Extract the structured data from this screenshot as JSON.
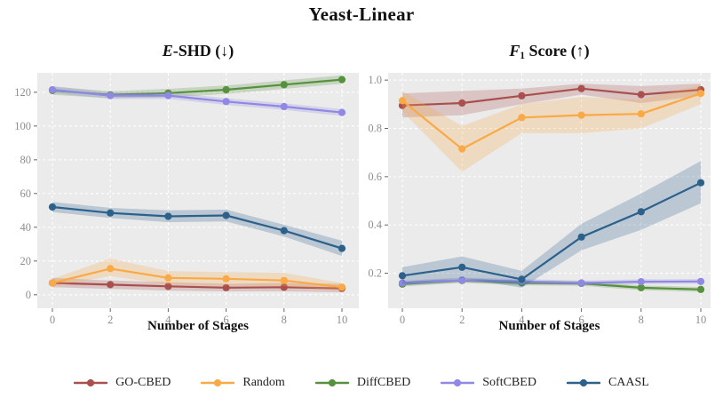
{
  "figure": {
    "title": "Yeast-Linear"
  },
  "panels": [
    {
      "title_italic": "E",
      "title_sub": "",
      "title_rest": "-SHD (↓)",
      "xlabel": "Number of Stages"
    },
    {
      "title_italic": "F",
      "title_sub": "1",
      "title_rest": " Score (↑)",
      "xlabel": "Number of Stages"
    }
  ],
  "legend": {
    "position": "bottom",
    "items": [
      {
        "label": "GO-CBED",
        "color": "#a9504e"
      },
      {
        "label": "Random",
        "color": "#f9a945"
      },
      {
        "label": "DiffCBED",
        "color": "#56913e"
      },
      {
        "label": "SoftCBED",
        "color": "#8f88e4"
      },
      {
        "label": "CAASL",
        "color": "#2c618c"
      }
    ]
  },
  "style": {
    "panel_bg": "#ebebeb",
    "gridline_color": "#ffffff",
    "tick_label_color": "#8e8e8e",
    "tick_mark_color": "#666666",
    "band_opacity": 0.25
  },
  "chart_data": [
    {
      "type": "line",
      "title": "E-SHD (↓)",
      "xlabel": "Number of Stages",
      "ylabel": "",
      "grid": true,
      "x": [
        0,
        2,
        4,
        6,
        8,
        10
      ],
      "xtick_labels": [
        "0",
        "2",
        "4",
        "6",
        "8",
        "10"
      ],
      "xlim": [
        -0.55,
        10.6
      ],
      "ylim": [
        -8,
        131.5
      ],
      "yticks": [
        0,
        20,
        40,
        60,
        80,
        100,
        120
      ],
      "ytick_labels": [
        "0",
        "20",
        "40",
        "60",
        "80",
        "100",
        "120"
      ],
      "series": [
        {
          "name": "GO-CBED",
          "color": "#a9504e",
          "values": [
            7,
            6,
            5,
            4.2,
            4.5,
            3.8
          ],
          "band_low": [
            4.5,
            3.5,
            2.5,
            2,
            2,
            1.5
          ],
          "band_high": [
            10,
            8.5,
            7.5,
            6.5,
            7,
            6.5
          ]
        },
        {
          "name": "Random",
          "color": "#f9a945",
          "values": [
            7,
            15.5,
            10,
            9.5,
            8.5,
            4.5
          ],
          "band_low": [
            5,
            11,
            6,
            5.5,
            5,
            2.5
          ],
          "band_high": [
            9.5,
            21.5,
            14,
            13.5,
            13,
            7
          ]
        },
        {
          "name": "DiffCBED",
          "color": "#56913e",
          "values": [
            121,
            118.5,
            119.5,
            121.5,
            124.5,
            127.5
          ],
          "band_low": [
            118.5,
            116.5,
            117,
            119,
            122,
            125
          ],
          "band_high": [
            123.5,
            120.5,
            122,
            124,
            127,
            130
          ]
        },
        {
          "name": "SoftCBED",
          "color": "#8f88e4",
          "values": [
            121.5,
            118,
            118,
            114.5,
            111.5,
            108
          ],
          "band_low": [
            119.5,
            116,
            116,
            112.5,
            109.5,
            106
          ],
          "band_high": [
            123.5,
            120,
            120,
            116.5,
            113.5,
            110
          ]
        },
        {
          "name": "CAASL",
          "color": "#2c618c",
          "values": [
            52,
            48.5,
            46.5,
            47,
            38,
            27.5
          ],
          "band_low": [
            49,
            45.5,
            43,
            43.5,
            34.5,
            23
          ],
          "band_high": [
            55,
            51.5,
            50,
            50.5,
            41.5,
            32
          ]
        }
      ]
    },
    {
      "type": "line",
      "title": "F1 Score (↑)",
      "xlabel": "Number of Stages",
      "ylabel": "",
      "grid": true,
      "x": [
        0,
        2,
        4,
        6,
        8,
        10
      ],
      "xtick_labels": [
        "0",
        "2",
        "4",
        "6",
        "8",
        "10"
      ],
      "xlim": [
        -0.5,
        10.35
      ],
      "ylim": [
        0.055,
        1.03
      ],
      "yticks": [
        0.2,
        0.4,
        0.6,
        0.8,
        1.0
      ],
      "ytick_labels": [
        "0.2",
        "0.4",
        "0.6",
        "0.8",
        "1.0"
      ],
      "series": [
        {
          "name": "GO-CBED",
          "color": "#a9504e",
          "values": [
            0.895,
            0.905,
            0.935,
            0.965,
            0.94,
            0.96
          ],
          "band_low": [
            0.845,
            0.855,
            0.9,
            0.94,
            0.905,
            0.935
          ],
          "band_high": [
            0.945,
            0.955,
            0.965,
            0.985,
            0.975,
            0.985
          ]
        },
        {
          "name": "Random",
          "color": "#f9a945",
          "values": [
            0.915,
            0.715,
            0.845,
            0.855,
            0.86,
            0.945
          ],
          "band_low": [
            0.87,
            0.62,
            0.78,
            0.78,
            0.8,
            0.9
          ],
          "band_high": [
            0.955,
            0.81,
            0.9,
            0.93,
            0.92,
            0.98
          ]
        },
        {
          "name": "DiffCBED",
          "color": "#56913e",
          "values": [
            0.155,
            0.17,
            0.16,
            0.158,
            0.14,
            0.133
          ],
          "band_low": [
            0.145,
            0.16,
            0.15,
            0.148,
            0.13,
            0.123
          ],
          "band_high": [
            0.165,
            0.18,
            0.17,
            0.168,
            0.15,
            0.143
          ]
        },
        {
          "name": "SoftCBED",
          "color": "#8f88e4",
          "values": [
            0.16,
            0.172,
            0.166,
            0.16,
            0.165,
            0.166
          ],
          "band_low": [
            0.15,
            0.162,
            0.156,
            0.15,
            0.155,
            0.156
          ],
          "band_high": [
            0.17,
            0.182,
            0.176,
            0.17,
            0.175,
            0.176
          ]
        },
        {
          "name": "CAASL",
          "color": "#2c618c",
          "values": [
            0.19,
            0.225,
            0.175,
            0.35,
            0.455,
            0.575
          ],
          "band_low": [
            0.155,
            0.18,
            0.14,
            0.295,
            0.38,
            0.49
          ],
          "band_high": [
            0.225,
            0.27,
            0.21,
            0.405,
            0.53,
            0.665
          ]
        }
      ]
    }
  ]
}
